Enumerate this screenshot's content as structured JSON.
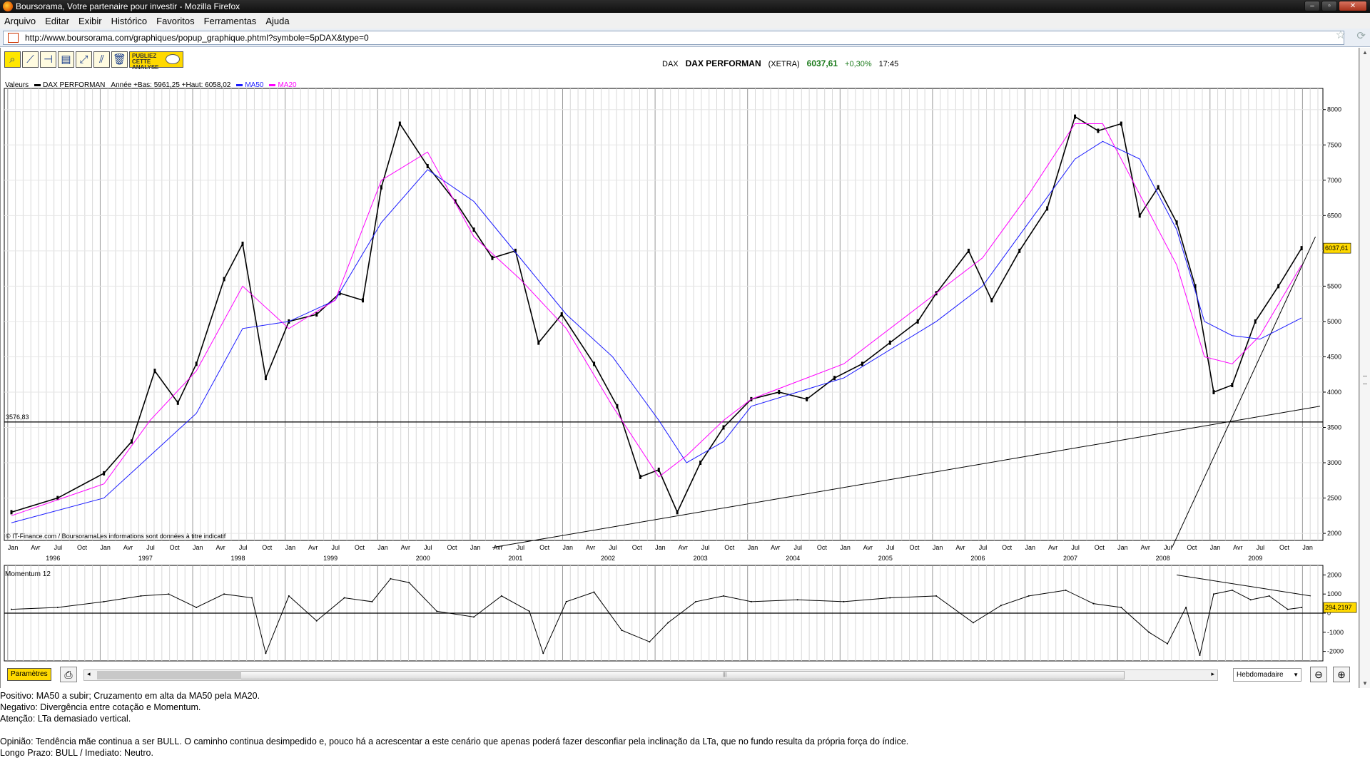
{
  "window": {
    "title": "Boursorama, Votre partenaire pour investir - Mozilla Firefox"
  },
  "menu": [
    "Arquivo",
    "Editar",
    "Exibir",
    "Histórico",
    "Favoritos",
    "Ferramentas",
    "Ajuda"
  ],
  "address": {
    "url": "http://www.boursorama.com/graphiques/popup_graphique.phtml?symbole=5pDAX&type=0"
  },
  "toolbar": {
    "publish_label": "PUBLIEZ CETTE ANALYSE"
  },
  "quote": {
    "code": "DAX",
    "name": "DAX PERFORMAN",
    "market": "(XETRA)",
    "price": "6037,61",
    "change": "+0,30%",
    "time": "17:45"
  },
  "legend": {
    "label": "Valeurs",
    "series": "DAX PERFORMAN",
    "range_text": "Année +Bas: 5961,25 +Haut: 6058,02",
    "ma50": "MA50",
    "ma20": "MA20"
  },
  "colors": {
    "price": "#000000",
    "ma50": "#1a1aff",
    "ma20": "#ff00ff",
    "highlight": "#ffd900"
  },
  "credits": "© IT-Finance.com / BoursoramaLes informations sont données à titre indicatif",
  "momentum": {
    "title": "Momentum 12",
    "current_label": "294,2197"
  },
  "chart_data": [
    {
      "type": "line",
      "title": "DAX PERFORMAN",
      "xlabel": "",
      "ylabel": "",
      "x_month_labels": [
        "Jan",
        "Avr",
        "Jul",
        "Oct"
      ],
      "years": [
        "1996",
        "1997",
        "1998",
        "1999",
        "2000",
        "2001",
        "2002",
        "2003",
        "2004",
        "2005",
        "2006",
        "2007",
        "2008",
        "2009"
      ],
      "ylim": [
        1900,
        8300
      ],
      "yticks": [
        2000,
        2500,
        3000,
        3500,
        4000,
        4500,
        5000,
        5500,
        6000,
        6500,
        7000,
        7500,
        8000
      ],
      "ytick_labels": [
        "2000",
        "2500",
        "3000",
        "3500",
        "4000",
        "4500",
        "5000",
        "5500",
        "6000",
        "6500",
        "7000",
        "7500",
        "8000"
      ],
      "current_value_label": "6037,61",
      "support_level": 3576.83,
      "support_label": "3576,83",
      "series": [
        {
          "name": "DAX PERFORMAN",
          "x": [
            1996.0,
            1996.5,
            1997.0,
            1997.3,
            1997.55,
            1997.8,
            1998.0,
            1998.3,
            1998.5,
            1998.75,
            1999.0,
            1999.3,
            1999.55,
            1999.8,
            2000.0,
            2000.2,
            2000.5,
            2000.8,
            2001.0,
            2001.2,
            2001.45,
            2001.7,
            2001.95,
            2002.3,
            2002.55,
            2002.8,
            2003.0,
            2003.2,
            2003.45,
            2003.7,
            2004.0,
            2004.3,
            2004.6,
            2004.9,
            2005.2,
            2005.5,
            2005.8,
            2006.0,
            2006.35,
            2006.6,
            2006.9,
            2007.2,
            2007.5,
            2007.75,
            2008.0,
            2008.2,
            2008.4,
            2008.6,
            2008.8,
            2009.0,
            2009.2,
            2009.45,
            2009.7,
            2009.95
          ],
          "values": [
            2300,
            2500,
            2850,
            3300,
            4300,
            3850,
            4400,
            5600,
            6100,
            4200,
            5000,
            5100,
            5400,
            5300,
            6900,
            7800,
            7200,
            6700,
            6300,
            5900,
            6000,
            4700,
            5100,
            4400,
            3800,
            2800,
            2900,
            2300,
            3000,
            3500,
            3900,
            4000,
            3900,
            4200,
            4400,
            4700,
            5000,
            5400,
            6000,
            5300,
            6000,
            6600,
            7900,
            7700,
            7800,
            6500,
            6900,
            6400,
            5500,
            4000,
            4100,
            5000,
            5500,
            6037.61
          ]
        },
        {
          "name": "MA50",
          "x": [
            1996.0,
            1997.0,
            1998.0,
            1998.5,
            1999.0,
            1999.5,
            2000.0,
            2000.5,
            2001.0,
            2001.5,
            2002.0,
            2002.5,
            2003.0,
            2003.3,
            2003.7,
            2004.0,
            2005.0,
            2006.0,
            2006.5,
            2007.0,
            2007.5,
            2007.8,
            2008.2,
            2008.6,
            2008.9,
            2009.2,
            2009.5,
            2009.95
          ],
          "values": [
            2150,
            2500,
            3700,
            4900,
            5000,
            5300,
            6400,
            7150,
            6700,
            5900,
            5100,
            4500,
            3600,
            3000,
            3300,
            3800,
            4200,
            5000,
            5500,
            6400,
            7300,
            7550,
            7300,
            6300,
            5000,
            4800,
            4750,
            5050
          ]
        },
        {
          "name": "MA20",
          "x": [
            1996.0,
            1997.0,
            1997.5,
            1998.0,
            1998.5,
            1999.0,
            1999.5,
            2000.0,
            2000.5,
            2001.0,
            2001.5,
            2002.0,
            2002.5,
            2003.0,
            2003.3,
            2003.7,
            2004.0,
            2005.0,
            2006.0,
            2006.5,
            2007.0,
            2007.5,
            2007.8,
            2008.2,
            2008.6,
            2008.9,
            2009.2,
            2009.5,
            2009.95
          ],
          "values": [
            2250,
            2700,
            3600,
            4300,
            5500,
            4900,
            5300,
            7000,
            7400,
            6200,
            5600,
            4900,
            3800,
            2800,
            3100,
            3600,
            3900,
            4400,
            5400,
            5900,
            6800,
            7800,
            7800,
            6800,
            5800,
            4500,
            4400,
            4800,
            5800
          ]
        }
      ]
    },
    {
      "type": "line",
      "title": "Momentum 12",
      "ylim": [
        -2500,
        2500
      ],
      "yticks": [
        -2000,
        -1000,
        0,
        1000,
        2000
      ],
      "ytick_labels": [
        "-2000",
        "-1000",
        "0",
        "1000",
        "2000"
      ],
      "series": [
        {
          "name": "Momentum 12",
          "x": [
            1996.0,
            1996.5,
            1997.0,
            1997.4,
            1997.7,
            1998.0,
            1998.3,
            1998.6,
            1998.75,
            1999.0,
            1999.3,
            1999.6,
            1999.9,
            2000.1,
            2000.3,
            2000.6,
            2001.0,
            2001.3,
            2001.6,
            2001.75,
            2002.0,
            2002.3,
            2002.6,
            2002.9,
            2003.1,
            2003.4,
            2003.7,
            2004.0,
            2004.5,
            2005.0,
            2005.5,
            2006.0,
            2006.4,
            2006.7,
            2007.0,
            2007.4,
            2007.7,
            2008.0,
            2008.3,
            2008.5,
            2008.7,
            2008.85,
            2009.0,
            2009.2,
            2009.4,
            2009.6,
            2009.8,
            2009.95
          ],
          "values": [
            200,
            300,
            600,
            900,
            1000,
            300,
            1000,
            800,
            -2100,
            900,
            -400,
            800,
            600,
            1800,
            1600,
            100,
            -200,
            900,
            100,
            -2100,
            600,
            1100,
            -900,
            -1500,
            -500,
            600,
            900,
            600,
            700,
            600,
            800,
            900,
            -500,
            400,
            900,
            1200,
            500,
            300,
            -1000,
            -1600,
            300,
            -2200,
            1000,
            1200,
            700,
            900,
            200,
            294.2197
          ]
        }
      ]
    }
  ],
  "bottombar": {
    "params_label": "Paramètres",
    "period_value": "Hebdomadaire"
  },
  "notes": [
    "Positivo: MA50 a subir; Cruzamento em alta da MA50 pela MA20.",
    "Negativo: Divergência entre cotação e Momentum.",
    "Atenção: LTa demasiado vertical.",
    "",
    "Opinião: Tendência mãe continua a ser BULL. O caminho continua desimpedido e, pouco há a acrescentar a este cenário que apenas poderá fazer desconfiar pela inclinação da LTa, que no fundo resulta da própria força do índice.",
    "Longo Prazo: BULL  /  Imediato: Neutro."
  ]
}
